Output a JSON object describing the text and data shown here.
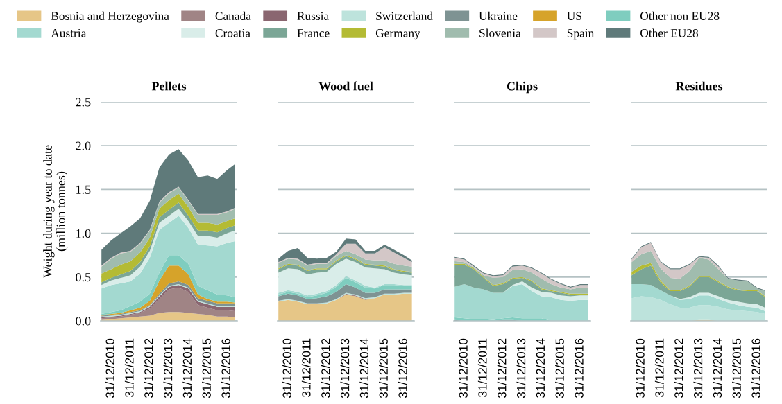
{
  "chart_data": [
    {
      "type": "area",
      "title": "Pellets",
      "ylabel": "Weight during year to date\n(million tonnes)",
      "stacked": true,
      "grid": "y",
      "legend": "top",
      "xlim": [
        "2010-06-15",
        "2017-07-15"
      ],
      "ylim": [
        0,
        2.5
      ],
      "xticks": [
        {
          "value": "2010-12-31",
          "label": "31/12/2010"
        },
        {
          "value": "2011-12-31",
          "label": "31/12/2011"
        },
        {
          "value": "2012-12-31",
          "label": "31/12/2012"
        },
        {
          "value": "2013-12-31",
          "label": "31/12/2013"
        },
        {
          "value": "2014-12-31",
          "label": "31/12/2014"
        },
        {
          "value": "2015-12-31",
          "label": "31/12/2015"
        },
        {
          "value": "2016-12-31",
          "label": "31/12/2016"
        }
      ],
      "yticks": [
        {
          "value": 0,
          "label": "0.0"
        },
        {
          "value": 0.5,
          "label": "0.5"
        },
        {
          "value": 1,
          "label": "1.0"
        },
        {
          "value": 1.5,
          "label": "1.5"
        },
        {
          "value": 2,
          "label": "2.0"
        },
        {
          "value": 2.5,
          "label": "2.5"
        }
      ],
      "x": [
        "2010-07",
        "2011-01",
        "2011-07",
        "2012-01",
        "2012-07",
        "2013-01",
        "2013-07",
        "2014-01",
        "2014-07",
        "2015-01",
        "2015-07",
        "2016-01",
        "2016-07",
        "2017-01",
        "2017-06"
      ],
      "series": [
        {
          "name": "Bosnia and Herzegovina",
          "color": "#e6c687",
          "values": [
            0.01,
            0.02,
            0.03,
            0.04,
            0.05,
            0.06,
            0.09,
            0.1,
            0.1,
            0.09,
            0.08,
            0.07,
            0.05,
            0.05,
            0.04
          ]
        },
        {
          "name": "Canada",
          "color": "#a08485",
          "values": [
            0.02,
            0.02,
            0.02,
            0.03,
            0.04,
            0.08,
            0.16,
            0.26,
            0.28,
            0.24,
            0.1,
            0.08,
            0.07,
            0.07,
            0.07
          ]
        },
        {
          "name": "Russia",
          "color": "#8a6670",
          "values": [
            0.01,
            0.01,
            0.01,
            0.01,
            0.01,
            0.02,
            0.03,
            0.03,
            0.03,
            0.04,
            0.04,
            0.04,
            0.04,
            0.04,
            0.05
          ]
        },
        {
          "name": "Switzerland",
          "color": "#bde3dc",
          "values": [
            0.01,
            0.01,
            0.01,
            0.01,
            0.01,
            0.01,
            0.01,
            0.01,
            0.01,
            0.01,
            0.01,
            0.01,
            0.01,
            0.01,
            0.01
          ]
        },
        {
          "name": "Ukraine",
          "color": "#7e9393",
          "values": [
            0.01,
            0.01,
            0.01,
            0.01,
            0.01,
            0.01,
            0.02,
            0.03,
            0.03,
            0.03,
            0.03,
            0.03,
            0.03,
            0.03,
            0.03
          ]
        },
        {
          "name": "US",
          "color": "#d6a32a",
          "values": [
            0.01,
            0.01,
            0.01,
            0.02,
            0.03,
            0.05,
            0.15,
            0.2,
            0.18,
            0.12,
            0.04,
            0.02,
            0.02,
            0.02,
            0.01
          ]
        },
        {
          "name": "Other non EU28",
          "color": "#7fcdbf",
          "values": [
            0.01,
            0.02,
            0.03,
            0.05,
            0.07,
            0.08,
            0.09,
            0.12,
            0.12,
            0.12,
            0.1,
            0.1,
            0.08,
            0.07,
            0.06
          ]
        },
        {
          "name": "Austria",
          "color": "#a3d9d0",
          "values": [
            0.29,
            0.31,
            0.31,
            0.28,
            0.32,
            0.41,
            0.49,
            0.37,
            0.45,
            0.41,
            0.47,
            0.51,
            0.55,
            0.6,
            0.64
          ]
        },
        {
          "name": "Croatia",
          "color": "#d9ede9",
          "values": [
            0.04,
            0.05,
            0.06,
            0.07,
            0.08,
            0.08,
            0.08,
            0.08,
            0.08,
            0.08,
            0.1,
            0.11,
            0.1,
            0.11,
            0.12
          ]
        },
        {
          "name": "France",
          "color": "#7ba696",
          "values": [
            0.03,
            0.03,
            0.04,
            0.05,
            0.05,
            0.05,
            0.06,
            0.07,
            0.07,
            0.06,
            0.06,
            0.06,
            0.06,
            0.06,
            0.06
          ]
        },
        {
          "name": "Germany",
          "color": "#b4bb34",
          "values": [
            0.1,
            0.1,
            0.11,
            0.11,
            0.11,
            0.1,
            0.1,
            0.11,
            0.1,
            0.1,
            0.09,
            0.09,
            0.09,
            0.08,
            0.08
          ]
        },
        {
          "name": "Slovenia",
          "color": "#a0bcae",
          "values": [
            0.08,
            0.12,
            0.13,
            0.11,
            0.1,
            0.08,
            0.07,
            0.08,
            0.07,
            0.07,
            0.09,
            0.09,
            0.11,
            0.1,
            0.11
          ]
        },
        {
          "name": "Spain",
          "color": "#d3c7c7",
          "values": [
            0.01,
            0.01,
            0.01,
            0.01,
            0.01,
            0.01,
            0.01,
            0.01,
            0.01,
            0.01,
            0.01,
            0.01,
            0.01,
            0.01,
            0.01
          ]
        },
        {
          "name": "Other EU28",
          "color": "#5f7a7a",
          "values": [
            0.18,
            0.2,
            0.22,
            0.28,
            0.28,
            0.33,
            0.39,
            0.43,
            0.43,
            0.45,
            0.42,
            0.44,
            0.4,
            0.47,
            0.5
          ]
        }
      ]
    },
    {
      "type": "area",
      "title": "Wood fuel",
      "stacked": true,
      "grid": "y",
      "tick_labels": "x",
      "xlim": [
        "2010-06-15",
        "2017-07-15"
      ],
      "ylim": [
        0,
        2.5
      ],
      "xticks": [
        {
          "value": "2010-12-31",
          "label": "31/12/2010"
        },
        {
          "value": "2011-12-31",
          "label": "31/12/2011"
        },
        {
          "value": "2012-12-31",
          "label": "31/12/2012"
        },
        {
          "value": "2013-12-31",
          "label": "31/12/2013"
        },
        {
          "value": "2014-12-31",
          "label": "31/12/2014"
        },
        {
          "value": "2015-12-31",
          "label": "31/12/2015"
        },
        {
          "value": "2016-12-31",
          "label": "31/12/2016"
        }
      ],
      "yticks": [
        0,
        0.5,
        1,
        1.5,
        2,
        2.5
      ],
      "x": [
        "2010-07",
        "2011-01",
        "2011-07",
        "2012-01",
        "2012-07",
        "2013-01",
        "2013-07",
        "2014-01",
        "2014-07",
        "2015-01",
        "2015-07",
        "2016-01",
        "2016-07",
        "2017-01",
        "2017-06"
      ],
      "series": [
        {
          "color": "#e6c687",
          "values": [
            0.22,
            0.24,
            0.22,
            0.19,
            0.19,
            0.2,
            0.24,
            0.3,
            0.28,
            0.24,
            0.26,
            0.3,
            0.3,
            0.31,
            0.31
          ]
        },
        {
          "color": "#a08485",
          "values": [
            0,
            0,
            0,
            0,
            0,
            0,
            0,
            0.01,
            0.01,
            0.01,
            0,
            0,
            0,
            0,
            0
          ]
        },
        {
          "color": "#bde3dc",
          "values": [
            0.01,
            0.01,
            0.01,
            0.01,
            0.01,
            0.01,
            0.01,
            0.01,
            0.01,
            0.01,
            0.01,
            0.01,
            0.01,
            0.01,
            0.01
          ]
        },
        {
          "color": "#7e9393",
          "values": [
            0.05,
            0.06,
            0.06,
            0.05,
            0.06,
            0.07,
            0.08,
            0.1,
            0.08,
            0.06,
            0.05,
            0.05,
            0.05,
            0.04,
            0.04
          ]
        },
        {
          "color": "#7fcdbf",
          "values": [
            0.02,
            0.02,
            0.02,
            0.02,
            0.03,
            0.04,
            0.06,
            0.07,
            0.06,
            0.06,
            0.05,
            0.05,
            0.05,
            0.04,
            0.04
          ]
        },
        {
          "color": "#a3d9d0",
          "values": [
            0.02,
            0.02,
            0.02,
            0.02,
            0.02,
            0.02,
            0.02,
            0.02,
            0.02,
            0.02,
            0.01,
            0.01,
            0.01,
            0.01,
            0.01
          ]
        },
        {
          "color": "#d9ede9",
          "values": [
            0.23,
            0.25,
            0.26,
            0.24,
            0.24,
            0.22,
            0.24,
            0.2,
            0.21,
            0.21,
            0.22,
            0.17,
            0.13,
            0.12,
            0.11
          ]
        },
        {
          "color": "#7ba696",
          "values": [
            0.04,
            0.04,
            0.04,
            0.04,
            0.04,
            0.03,
            0.03,
            0.03,
            0.03,
            0.03,
            0.03,
            0.03,
            0.03,
            0.03,
            0.03
          ]
        },
        {
          "color": "#b4bb34",
          "values": [
            0.01,
            0.01,
            0.01,
            0.01,
            0.01,
            0.01,
            0.01,
            0.01,
            0.01,
            0.01,
            0.01,
            0.01,
            0.01,
            0.01,
            0.01
          ]
        },
        {
          "color": "#a0bcae",
          "values": [
            0.06,
            0.06,
            0.06,
            0.05,
            0.05,
            0.05,
            0.05,
            0.05,
            0.05,
            0.05,
            0.05,
            0.06,
            0.06,
            0.06,
            0.06
          ]
        },
        {
          "color": "#d3c7c7",
          "values": [
            0.01,
            0.01,
            0.01,
            0.01,
            0.01,
            0.01,
            0.02,
            0.08,
            0.12,
            0.07,
            0.08,
            0.15,
            0.13,
            0.09,
            0.05
          ]
        },
        {
          "color": "#5f7a7a",
          "values": [
            0.04,
            0.08,
            0.12,
            0.08,
            0.05,
            0.06,
            0.03,
            0.06,
            0.05,
            0.03,
            0.03,
            0.03,
            0.03,
            0.03,
            0.02
          ]
        }
      ]
    },
    {
      "type": "area",
      "title": "Chips",
      "stacked": true,
      "grid": "y",
      "tick_labels": "x",
      "xlim": [
        "2010-06-15",
        "2017-07-15"
      ],
      "ylim": [
        0,
        2.5
      ],
      "xticks": [
        {
          "value": "2010-12-31",
          "label": "31/12/2010"
        },
        {
          "value": "2011-12-31",
          "label": "31/12/2011"
        },
        {
          "value": "2012-12-31",
          "label": "31/12/2012"
        },
        {
          "value": "2013-12-31",
          "label": "31/12/2013"
        },
        {
          "value": "2014-12-31",
          "label": "31/12/2014"
        },
        {
          "value": "2015-12-31",
          "label": "31/12/2015"
        },
        {
          "value": "2016-12-31",
          "label": "31/12/2016"
        }
      ],
      "yticks": [
        0,
        0.5,
        1,
        1.5,
        2,
        2.5
      ],
      "x": [
        "2010-07",
        "2011-01",
        "2011-07",
        "2012-01",
        "2012-07",
        "2013-01",
        "2013-07",
        "2014-01",
        "2014-07",
        "2015-01",
        "2015-07",
        "2016-01",
        "2016-07",
        "2017-01",
        "2017-06"
      ],
      "series": [
        {
          "color": "#7e9393",
          "values": [
            0.01,
            0,
            0,
            0,
            0,
            0.01,
            0.01,
            0,
            0,
            0,
            0,
            0,
            0,
            0,
            0
          ]
        },
        {
          "color": "#7fcdbf",
          "values": [
            0.03,
            0.03,
            0.02,
            0.02,
            0.01,
            0.02,
            0.03,
            0.03,
            0.03,
            0.03,
            0,
            0,
            0,
            0,
            0
          ]
        },
        {
          "color": "#a3d9d0",
          "values": [
            0.35,
            0.39,
            0.36,
            0.34,
            0.31,
            0.29,
            0.36,
            0.39,
            0.31,
            0.25,
            0.27,
            0.24,
            0.23,
            0.24,
            0.24
          ]
        },
        {
          "color": "#d9ede9",
          "values": [
            0,
            0,
            0,
            0,
            0,
            0,
            0.01,
            0.03,
            0.04,
            0.05,
            0.05,
            0.05,
            0.05,
            0.05,
            0.05
          ]
        },
        {
          "color": "#7ba696",
          "values": [
            0.25,
            0.22,
            0.21,
            0.13,
            0.08,
            0.1,
            0.07,
            0.04,
            0.07,
            0.03,
            0.02,
            0.03,
            0.02,
            0.01,
            0.01
          ]
        },
        {
          "color": "#b4bb34",
          "values": [
            0.01,
            0.01,
            0.01,
            0.01,
            0.01,
            0.01,
            0.01,
            0.01,
            0.01,
            0.01,
            0.01,
            0.01,
            0.01,
            0.01,
            0.01
          ]
        },
        {
          "color": "#a0bcae",
          "values": [
            0.03,
            0.02,
            0.01,
            0.02,
            0.08,
            0.07,
            0.09,
            0.09,
            0.09,
            0.11,
            0.07,
            0.05,
            0.05,
            0.07,
            0.07
          ]
        },
        {
          "color": "#d3c7c7",
          "values": [
            0.04,
            0.03,
            0.01,
            0.02,
            0.02,
            0.02,
            0.04,
            0.04,
            0.05,
            0.06,
            0.05,
            0.04,
            0.02,
            0.03,
            0.03
          ]
        },
        {
          "color": "#5f7a7a",
          "values": [
            0.01,
            0.01,
            0.01,
            0.01,
            0.01,
            0.01,
            0.01,
            0.01,
            0.01,
            0.01,
            0.01,
            0.01,
            0.01,
            0.01,
            0.01
          ]
        }
      ]
    },
    {
      "type": "area",
      "title": "Residues",
      "stacked": true,
      "grid": "y",
      "tick_labels": "x",
      "xlim": [
        "2010-06-15",
        "2017-07-15"
      ],
      "ylim": [
        0,
        2.5
      ],
      "xticks": [
        {
          "value": "2010-12-31",
          "label": "31/12/2010"
        },
        {
          "value": "2011-12-31",
          "label": "31/12/2011"
        },
        {
          "value": "2012-12-31",
          "label": "31/12/2012"
        },
        {
          "value": "2013-12-31",
          "label": "31/12/2013"
        },
        {
          "value": "2014-12-31",
          "label": "31/12/2014"
        },
        {
          "value": "2015-12-31",
          "label": "31/12/2015"
        },
        {
          "value": "2016-12-31",
          "label": "31/12/2016"
        }
      ],
      "yticks": [
        0,
        0.5,
        1,
        1.5,
        2,
        2.5
      ],
      "x": [
        "2010-07",
        "2011-01",
        "2011-07",
        "2012-01",
        "2012-07",
        "2013-01",
        "2013-07",
        "2014-01",
        "2014-07",
        "2015-01",
        "2015-07",
        "2016-01",
        "2016-07",
        "2017-01",
        "2017-06"
      ],
      "series": [
        {
          "color": "#e6c687",
          "values": [
            0,
            0,
            0,
            0,
            0,
            0,
            0,
            0.01,
            0.01,
            0,
            0,
            0,
            0,
            0,
            0
          ]
        },
        {
          "color": "#bde3dc",
          "values": [
            0.26,
            0.28,
            0.27,
            0.24,
            0.19,
            0.15,
            0.15,
            0.17,
            0.17,
            0.16,
            0.13,
            0.12,
            0.11,
            0.1,
            0.08
          ]
        },
        {
          "color": "#a3d9d0",
          "values": [
            0.16,
            0.14,
            0.14,
            0.11,
            0.1,
            0.09,
            0.1,
            0.11,
            0.11,
            0.09,
            0.08,
            0.06,
            0.05,
            0.05,
            0.03
          ]
        },
        {
          "color": "#d9ede9",
          "values": [
            0,
            0,
            0,
            0,
            0,
            0.01,
            0.02,
            0.03,
            0.03,
            0.03,
            0.03,
            0.04,
            0.04,
            0.04,
            0.04
          ]
        },
        {
          "color": "#7ba696",
          "values": [
            0.1,
            0.17,
            0.22,
            0.09,
            0.05,
            0.09,
            0.12,
            0.18,
            0.18,
            0.16,
            0.14,
            0.13,
            0.14,
            0.15,
            0.12
          ]
        },
        {
          "color": "#b4bb34",
          "values": [
            0.04,
            0.04,
            0.03,
            0.02,
            0.01,
            0.01,
            0.01,
            0.01,
            0.01,
            0.01,
            0.01,
            0.01,
            0.01,
            0.01,
            0.01
          ]
        },
        {
          "color": "#a0bcae",
          "values": [
            0.11,
            0.13,
            0.14,
            0.14,
            0.14,
            0.13,
            0.17,
            0.21,
            0.19,
            0.14,
            0.09,
            0.1,
            0.1,
            0.02,
            0.06
          ]
        },
        {
          "color": "#d3c7c7",
          "values": [
            0.03,
            0.08,
            0.09,
            0.07,
            0.1,
            0.11,
            0.07,
            0.01,
            0.02,
            0.03,
            0,
            0,
            0,
            0,
            0
          ]
        },
        {
          "color": "#5f7a7a",
          "values": [
            0.01,
            0.01,
            0.01,
            0.01,
            0.01,
            0.01,
            0.01,
            0.01,
            0.01,
            0.01,
            0.01,
            0.01,
            0.01,
            0.01,
            0.01
          ]
        }
      ]
    }
  ]
}
